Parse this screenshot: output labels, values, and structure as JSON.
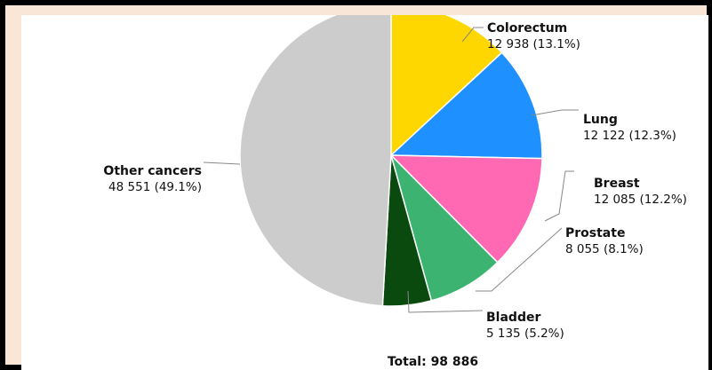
{
  "chart_data": {
    "type": "pie",
    "slices": [
      {
        "name": "Colorectum",
        "value": 12938,
        "value_label": "12 938 (13.1%)",
        "color": "#ffd700"
      },
      {
        "name": "Lung",
        "value": 12122,
        "value_label": "12 122 (12.3%)",
        "color": "#1e90ff"
      },
      {
        "name": "Breast",
        "value": 12085,
        "value_label": "12 085 (12.2%)",
        "color": "#ff69b4"
      },
      {
        "name": "Prostate",
        "value": 8055,
        "value_label": "8 055 (8.1%)",
        "color": "#3cb371"
      },
      {
        "name": "Bladder",
        "value": 5135,
        "value_label": "5 135 (5.2%)",
        "color": "#0b4a0f"
      },
      {
        "name": "Other cancers",
        "value": 48551,
        "value_label": "48 551 (49.1%)",
        "color": "#cccccc"
      }
    ],
    "total_label": "Total: 98 886",
    "start_direction": "12 o'clock",
    "direction": "clockwise"
  }
}
